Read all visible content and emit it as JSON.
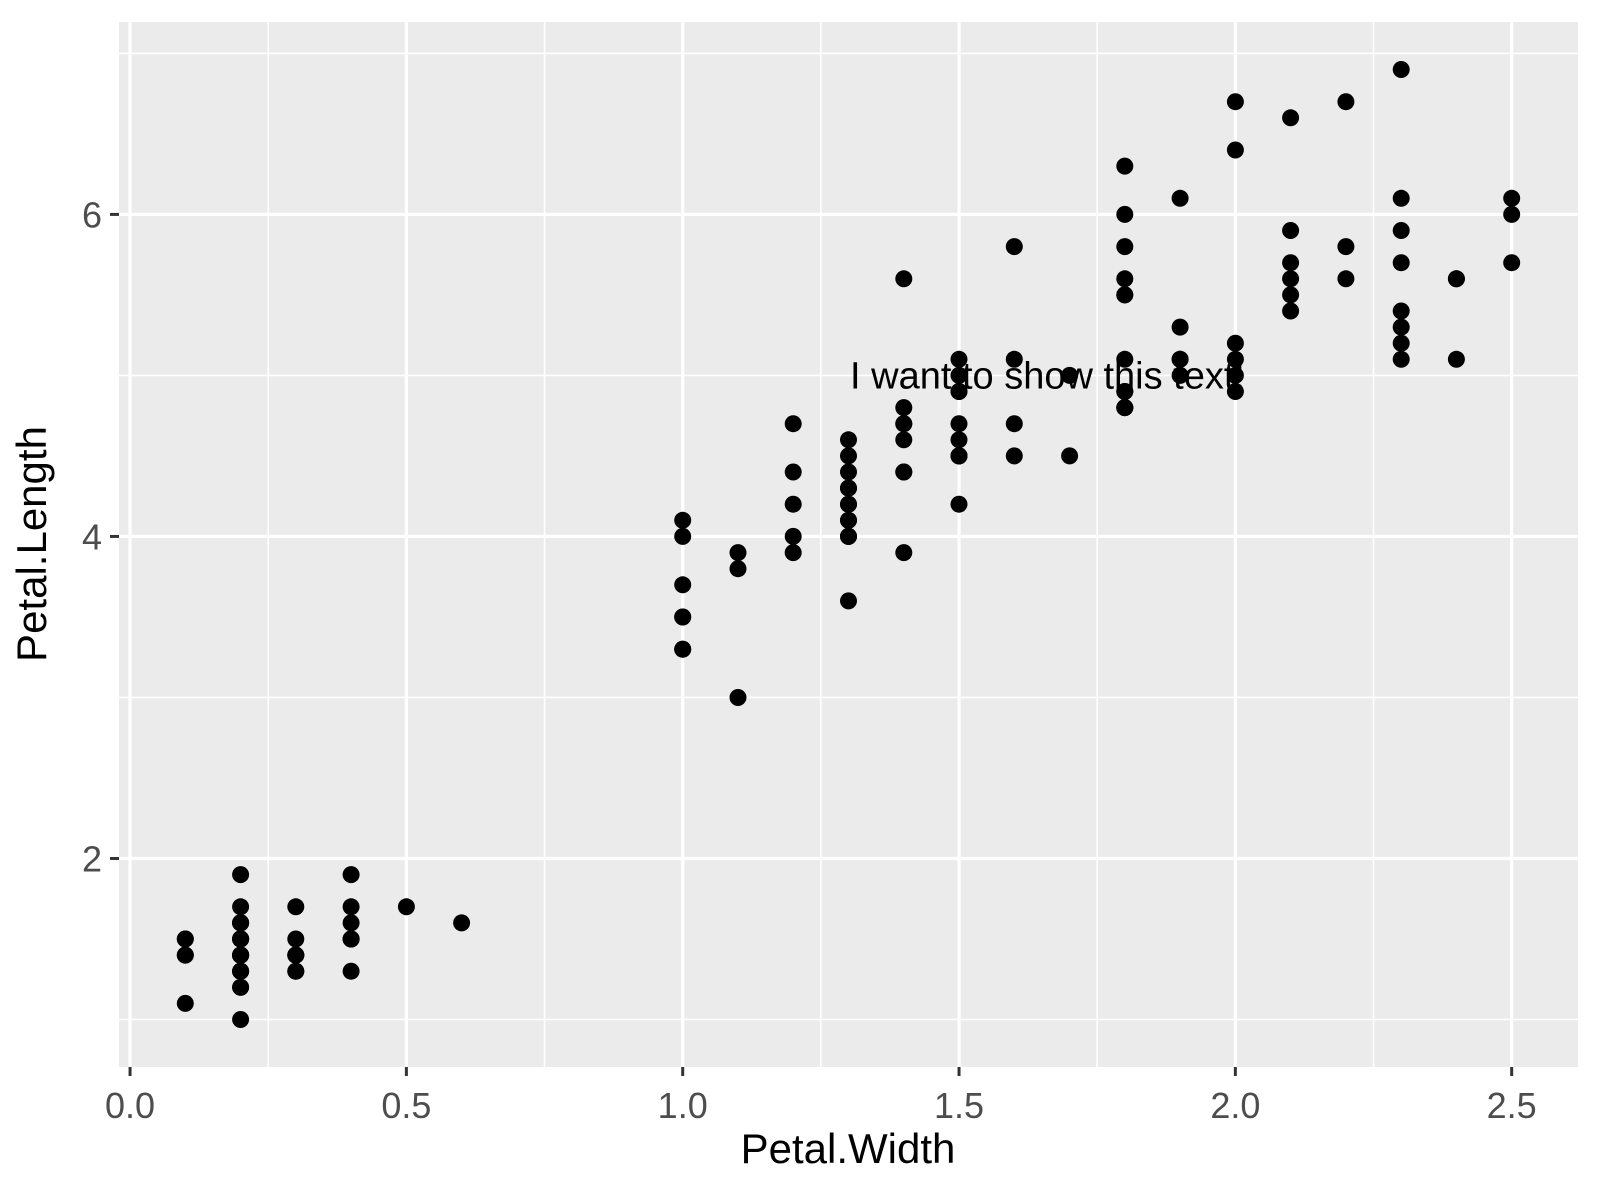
{
  "chart_data": {
    "type": "scatter",
    "title": "",
    "xlabel": "Petal.Width",
    "ylabel": "Petal.Length",
    "xlim": [
      -0.02,
      2.62
    ],
    "ylim": [
      0.705,
      7.195
    ],
    "x_major_ticks": [
      0.0,
      0.5,
      1.0,
      1.5,
      2.0,
      2.5
    ],
    "x_tick_labels": [
      "0.0",
      "0.5",
      "1.0",
      "1.5",
      "2.0",
      "2.5"
    ],
    "x_minor_ticks": [
      0.25,
      0.75,
      1.25,
      1.75,
      2.25
    ],
    "y_major_ticks": [
      2,
      4,
      6
    ],
    "y_tick_labels": [
      "2",
      "4",
      "6"
    ],
    "y_minor_ticks": [
      1,
      3,
      5,
      7
    ],
    "grid": true,
    "legend": "none",
    "annotation": {
      "label": "I want to show this text!",
      "x": 1.66,
      "y": 5.0
    },
    "points": [
      [
        0.2,
        1.4
      ],
      [
        0.2,
        1.4
      ],
      [
        0.2,
        1.3
      ],
      [
        0.2,
        1.5
      ],
      [
        0.2,
        1.4
      ],
      [
        0.4,
        1.7
      ],
      [
        0.3,
        1.4
      ],
      [
        0.2,
        1.5
      ],
      [
        0.2,
        1.4
      ],
      [
        0.1,
        1.5
      ],
      [
        0.2,
        1.5
      ],
      [
        0.2,
        1.6
      ],
      [
        0.1,
        1.4
      ],
      [
        0.1,
        1.1
      ],
      [
        0.2,
        1.2
      ],
      [
        0.4,
        1.5
      ],
      [
        0.4,
        1.3
      ],
      [
        0.3,
        1.4
      ],
      [
        0.3,
        1.7
      ],
      [
        0.3,
        1.5
      ],
      [
        0.2,
        1.7
      ],
      [
        0.4,
        1.5
      ],
      [
        0.2,
        1.0
      ],
      [
        0.5,
        1.7
      ],
      [
        0.2,
        1.9
      ],
      [
        0.2,
        1.6
      ],
      [
        0.4,
        1.6
      ],
      [
        0.2,
        1.5
      ],
      [
        0.2,
        1.4
      ],
      [
        0.2,
        1.6
      ],
      [
        0.2,
        1.6
      ],
      [
        0.4,
        1.5
      ],
      [
        0.1,
        1.5
      ],
      [
        0.2,
        1.4
      ],
      [
        0.2,
        1.5
      ],
      [
        0.2,
        1.2
      ],
      [
        0.2,
        1.3
      ],
      [
        0.1,
        1.4
      ],
      [
        0.2,
        1.3
      ],
      [
        0.2,
        1.5
      ],
      [
        0.3,
        1.3
      ],
      [
        0.3,
        1.3
      ],
      [
        0.2,
        1.3
      ],
      [
        0.6,
        1.6
      ],
      [
        0.4,
        1.9
      ],
      [
        0.3,
        1.4
      ],
      [
        0.2,
        1.6
      ],
      [
        0.2,
        1.4
      ],
      [
        0.2,
        1.5
      ],
      [
        0.2,
        1.4
      ],
      [
        1.4,
        4.7
      ],
      [
        1.5,
        4.5
      ],
      [
        1.5,
        4.9
      ],
      [
        1.3,
        4.0
      ],
      [
        1.5,
        4.6
      ],
      [
        1.3,
        4.5
      ],
      [
        1.6,
        4.7
      ],
      [
        1.0,
        3.3
      ],
      [
        1.3,
        4.6
      ],
      [
        1.4,
        3.9
      ],
      [
        1.0,
        3.5
      ],
      [
        1.5,
        4.2
      ],
      [
        1.0,
        4.0
      ],
      [
        1.4,
        4.7
      ],
      [
        1.3,
        3.6
      ],
      [
        1.4,
        4.4
      ],
      [
        1.5,
        4.5
      ],
      [
        1.0,
        4.1
      ],
      [
        1.5,
        4.5
      ],
      [
        1.1,
        3.9
      ],
      [
        1.8,
        4.8
      ],
      [
        1.3,
        4.0
      ],
      [
        1.5,
        4.9
      ],
      [
        1.2,
        4.7
      ],
      [
        1.3,
        4.3
      ],
      [
        1.4,
        4.4
      ],
      [
        1.4,
        4.8
      ],
      [
        1.7,
        5.0
      ],
      [
        1.5,
        4.5
      ],
      [
        1.0,
        3.5
      ],
      [
        1.1,
        3.8
      ],
      [
        1.0,
        3.7
      ],
      [
        1.2,
        3.9
      ],
      [
        1.6,
        5.1
      ],
      [
        1.5,
        4.5
      ],
      [
        1.6,
        4.5
      ],
      [
        1.5,
        4.7
      ],
      [
        1.3,
        4.4
      ],
      [
        1.3,
        4.1
      ],
      [
        1.3,
        4.0
      ],
      [
        1.2,
        4.4
      ],
      [
        1.4,
        4.6
      ],
      [
        1.2,
        4.0
      ],
      [
        1.0,
        3.3
      ],
      [
        1.3,
        4.2
      ],
      [
        1.2,
        4.2
      ],
      [
        1.3,
        4.2
      ],
      [
        1.3,
        4.3
      ],
      [
        1.1,
        3.0
      ],
      [
        1.3,
        4.1
      ],
      [
        2.5,
        6.0
      ],
      [
        1.9,
        5.1
      ],
      [
        2.1,
        5.9
      ],
      [
        1.8,
        5.6
      ],
      [
        2.2,
        5.8
      ],
      [
        2.1,
        6.6
      ],
      [
        1.7,
        4.5
      ],
      [
        1.8,
        6.3
      ],
      [
        1.8,
        5.8
      ],
      [
        2.5,
        6.1
      ],
      [
        2.0,
        5.1
      ],
      [
        1.9,
        5.3
      ],
      [
        2.1,
        5.5
      ],
      [
        2.0,
        5.0
      ],
      [
        2.4,
        5.1
      ],
      [
        2.3,
        5.3
      ],
      [
        1.8,
        5.5
      ],
      [
        2.2,
        6.7
      ],
      [
        2.3,
        6.9
      ],
      [
        1.5,
        5.0
      ],
      [
        2.3,
        5.7
      ],
      [
        2.0,
        4.9
      ],
      [
        2.0,
        6.7
      ],
      [
        1.8,
        4.9
      ],
      [
        2.1,
        5.7
      ],
      [
        1.8,
        6.0
      ],
      [
        1.8,
        4.8
      ],
      [
        1.8,
        4.9
      ],
      [
        2.1,
        5.6
      ],
      [
        1.6,
        5.8
      ],
      [
        1.9,
        6.1
      ],
      [
        2.0,
        6.4
      ],
      [
        2.2,
        5.6
      ],
      [
        1.5,
        5.1
      ],
      [
        1.4,
        5.6
      ],
      [
        2.3,
        6.1
      ],
      [
        2.4,
        5.6
      ],
      [
        1.8,
        5.5
      ],
      [
        1.8,
        4.8
      ],
      [
        2.1,
        5.4
      ],
      [
        2.4,
        5.6
      ],
      [
        2.3,
        5.1
      ],
      [
        1.9,
        5.1
      ],
      [
        2.3,
        5.9
      ],
      [
        2.5,
        5.7
      ],
      [
        2.3,
        5.2
      ],
      [
        1.9,
        5.0
      ],
      [
        2.0,
        5.2
      ],
      [
        2.3,
        5.4
      ],
      [
        1.8,
        5.1
      ]
    ]
  },
  "style": {
    "panel_bg": "#EBEBEB",
    "grid_color": "#FFFFFF",
    "point_color": "#000000",
    "tick_mark_color": "#333333",
    "tick_label_color": "#4D4D4D",
    "axis_title_color": "#000000",
    "annotation_color": "#000000"
  }
}
